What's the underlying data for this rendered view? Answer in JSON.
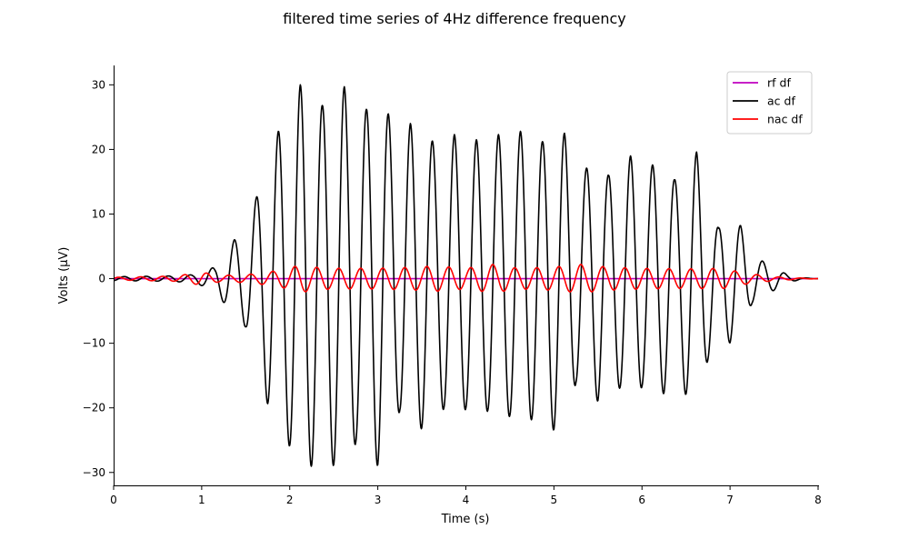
{
  "chart_data": {
    "type": "line",
    "title": "filtered time series of 4Hz difference frequency",
    "xlabel": "Time (s)",
    "ylabel": "Volts (μV)",
    "xlim": [
      0,
      8
    ],
    "ylim": [
      -32,
      33
    ],
    "xticks": [
      0,
      1,
      2,
      3,
      4,
      5,
      6,
      7,
      8
    ],
    "xtick_labels": [
      "0",
      "1",
      "2",
      "3",
      "4",
      "5",
      "6",
      "7",
      "8"
    ],
    "yticks": [
      -30,
      -20,
      -10,
      0,
      10,
      20,
      30
    ],
    "ytick_labels": [
      "−30",
      "−20",
      "−10",
      "0",
      "10",
      "20",
      "30"
    ],
    "grid": false,
    "legend_position": "top-right",
    "frequency_hz": 4,
    "series": [
      {
        "name": "rf df",
        "color": "#bf00bf",
        "envelope": [
          [
            0,
            0
          ],
          [
            8,
            0
          ]
        ]
      },
      {
        "name": "ac df",
        "color": "#000000",
        "envelope": [
          [
            0,
            0.3
          ],
          [
            0.6,
            0.4
          ],
          [
            0.9,
            0.6
          ],
          [
            1.15,
            1.8
          ],
          [
            1.37,
            6.0
          ],
          [
            1.5,
            7.5
          ],
          [
            1.62,
            12.5
          ],
          [
            1.75,
            19.5
          ],
          [
            1.87,
            22.8
          ],
          [
            2.0,
            26.0
          ],
          [
            2.12,
            30.0
          ],
          [
            2.25,
            29.0
          ],
          [
            2.37,
            26.8
          ],
          [
            2.5,
            29.0
          ],
          [
            2.62,
            29.7
          ],
          [
            2.75,
            25.5
          ],
          [
            2.87,
            26.2
          ],
          [
            3.0,
            29.0
          ],
          [
            3.12,
            25.5
          ],
          [
            3.25,
            20.5
          ],
          [
            3.37,
            24.0
          ],
          [
            3.5,
            23.2
          ],
          [
            3.62,
            21.3
          ],
          [
            3.75,
            20.2
          ],
          [
            3.87,
            22.3
          ],
          [
            4.0,
            20.2
          ],
          [
            4.12,
            21.5
          ],
          [
            4.25,
            20.5
          ],
          [
            4.37,
            22.3
          ],
          [
            4.5,
            21.3
          ],
          [
            4.62,
            22.8
          ],
          [
            4.75,
            21.8
          ],
          [
            4.87,
            21.2
          ],
          [
            5.0,
            23.5
          ],
          [
            5.12,
            22.5
          ],
          [
            5.25,
            16.2
          ],
          [
            5.37,
            17.1
          ],
          [
            5.5,
            19.0
          ],
          [
            5.62,
            16.0
          ],
          [
            5.75,
            17.0
          ],
          [
            5.87,
            19.0
          ],
          [
            6.0,
            16.8
          ],
          [
            6.12,
            17.6
          ],
          [
            6.25,
            17.8
          ],
          [
            6.37,
            15.3
          ],
          [
            6.5,
            18.0
          ],
          [
            6.62,
            19.6
          ],
          [
            6.75,
            12.5
          ],
          [
            6.87,
            7.8
          ],
          [
            7.0,
            10.0
          ],
          [
            7.12,
            8.2
          ],
          [
            7.25,
            3.8
          ],
          [
            7.37,
            2.7
          ],
          [
            7.5,
            1.8
          ],
          [
            7.65,
            0.6
          ],
          [
            7.8,
            0.15
          ],
          [
            8.0,
            0
          ]
        ]
      },
      {
        "name": "nac df",
        "color": "#ff0000",
        "envelope": [
          [
            0,
            0.2
          ],
          [
            0.7,
            0.4
          ],
          [
            0.85,
            0.7
          ],
          [
            1.0,
            1.0
          ],
          [
            1.2,
            0.5
          ],
          [
            1.5,
            0.6
          ],
          [
            1.75,
            1.0
          ],
          [
            2.0,
            1.6
          ],
          [
            2.12,
            2.2
          ],
          [
            2.25,
            1.8
          ],
          [
            2.5,
            1.6
          ],
          [
            3.0,
            1.6
          ],
          [
            3.5,
            1.8
          ],
          [
            3.62,
            2.0
          ],
          [
            4.0,
            1.6
          ],
          [
            4.3,
            2.2
          ],
          [
            4.6,
            1.6
          ],
          [
            5.0,
            1.8
          ],
          [
            5.3,
            2.2
          ],
          [
            5.6,
            1.8
          ],
          [
            6.0,
            1.6
          ],
          [
            6.5,
            1.5
          ],
          [
            6.9,
            1.6
          ],
          [
            7.2,
            0.8
          ],
          [
            7.5,
            0.3
          ],
          [
            7.8,
            0.1
          ],
          [
            8.0,
            0
          ]
        ]
      }
    ]
  }
}
